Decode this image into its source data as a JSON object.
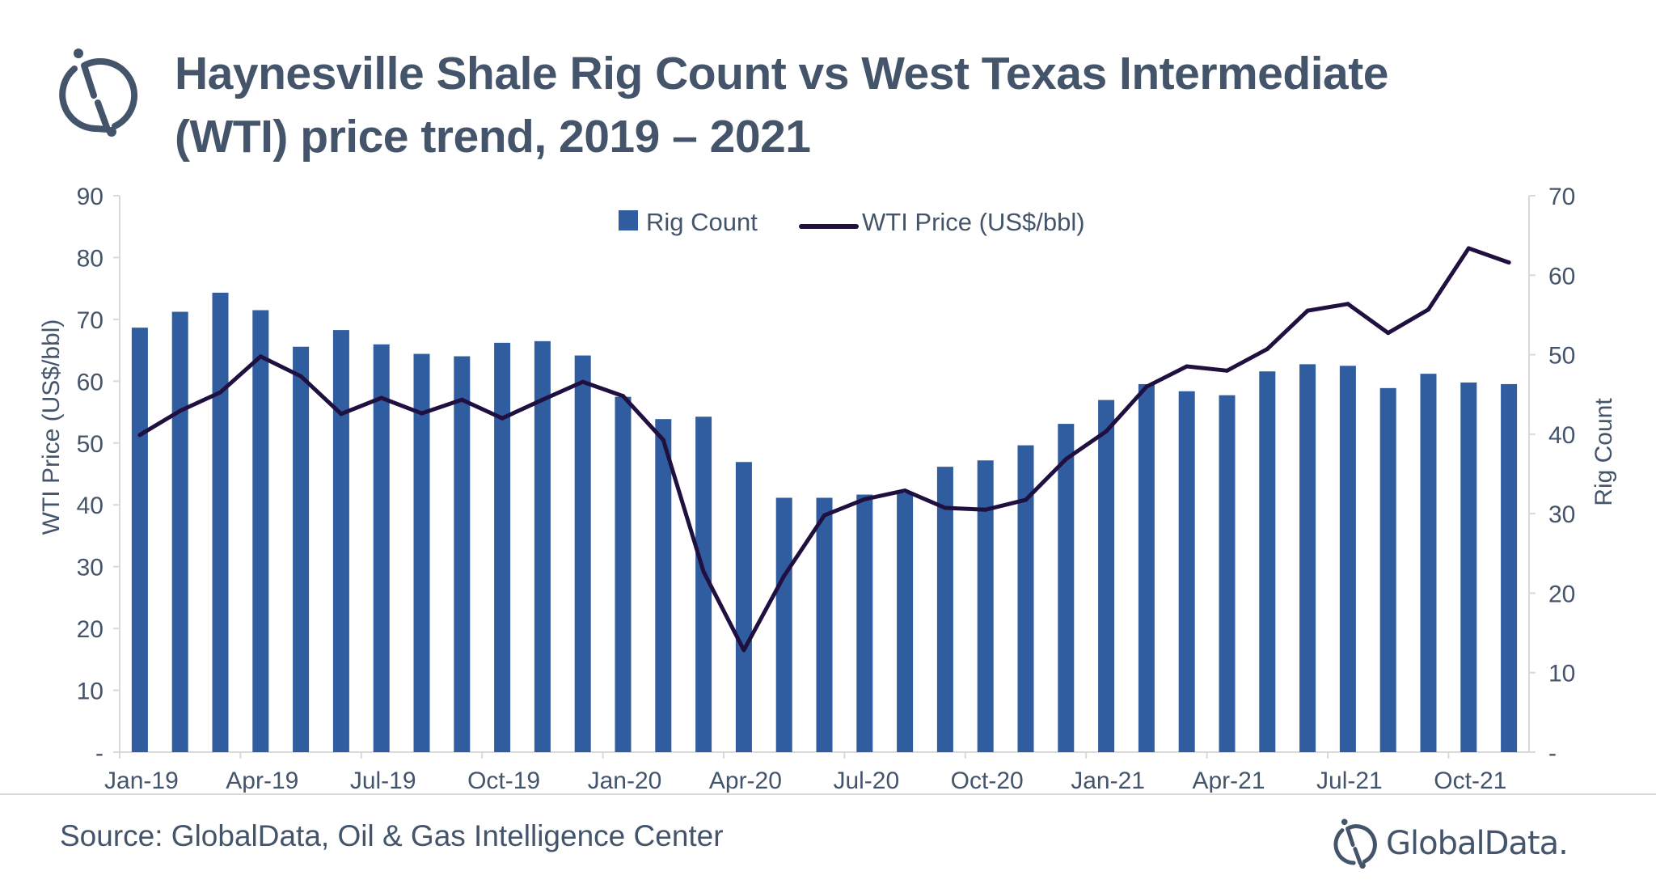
{
  "header": {
    "title_line1": "Haynesville Shale Rig Count vs West Texas Intermediate",
    "title_line2": "(WTI) price trend, 2019 – 2021",
    "logo_icon": "globaldata-logo-icon"
  },
  "footer": {
    "source": "Source: GlobalData, Oil & Gas Intelligence Center",
    "brand": "GlobalData."
  },
  "colors": {
    "bar": "#2f5d9f",
    "line": "#1f1040",
    "text": "#44546a",
    "axis": "#d9d9d9"
  },
  "chart_data": {
    "type": "bar+line",
    "title": "Haynesville Shale Rig Count vs West Texas Intermediate (WTI) price trend, 2019 – 2021",
    "categories": [
      "Jan-19",
      "Feb-19",
      "Mar-19",
      "Apr-19",
      "May-19",
      "Jun-19",
      "Jul-19",
      "Aug-19",
      "Sep-19",
      "Oct-19",
      "Nov-19",
      "Dec-19",
      "Jan-20",
      "Feb-20",
      "Mar-20",
      "Apr-20",
      "May-20",
      "Jun-20",
      "Jul-20",
      "Aug-20",
      "Sep-20",
      "Oct-20",
      "Nov-20",
      "Dec-20",
      "Jan-21",
      "Feb-21",
      "Mar-21",
      "Apr-21",
      "May-21",
      "Jun-21",
      "Jul-21",
      "Aug-21",
      "Sep-21",
      "Oct-21",
      "Nov-21"
    ],
    "x_tick_labels": [
      "Jan-19",
      "Apr-19",
      "Jul-19",
      "Oct-19",
      "Jan-20",
      "Apr-20",
      "Jul-20",
      "Oct-20",
      "Jan-21",
      "Apr-21",
      "Jul-21",
      "Oct-21"
    ],
    "series": [
      {
        "name": "Rig Count",
        "type": "bar",
        "axis": "right",
        "values": [
          53.4,
          55.4,
          57.8,
          55.6,
          51.0,
          53.1,
          51.3,
          50.1,
          49.8,
          51.5,
          51.7,
          49.9,
          44.7,
          41.9,
          42.2,
          36.5,
          32.0,
          32.0,
          32.4,
          32.6,
          35.9,
          36.7,
          38.6,
          41.3,
          44.3,
          46.3,
          45.4,
          44.9,
          47.9,
          48.8,
          48.6,
          45.8,
          47.6,
          46.5,
          46.3
        ]
      },
      {
        "name": "WTI Price (US$/bbl)",
        "type": "line",
        "axis": "left",
        "values": [
          51.3,
          55.2,
          58.2,
          64.0,
          60.8,
          54.7,
          57.3,
          54.8,
          57.0,
          54.0,
          57.0,
          59.9,
          57.6,
          50.5,
          29.2,
          16.5,
          28.5,
          38.3,
          40.9,
          42.3,
          39.5,
          39.2,
          40.8,
          47.4,
          51.9,
          59.1,
          62.4,
          61.7,
          65.2,
          71.4,
          72.5,
          67.8,
          71.6,
          81.5,
          79.2
        ]
      }
    ],
    "ylabel_left": "WTI Price (US$/bbl)",
    "ylabel_right": "Rig Count",
    "ylim_left": [
      0,
      90
    ],
    "ylim_right": [
      0,
      70
    ],
    "yticks_left": [
      "-",
      "10",
      "20",
      "30",
      "40",
      "50",
      "60",
      "70",
      "80",
      "90"
    ],
    "yticks_right": [
      "-",
      "10",
      "20",
      "30",
      "40",
      "50",
      "60",
      "70"
    ],
    "legend": [
      "Rig Count",
      "WTI Price (US$/bbl)"
    ],
    "legend_position": "top-center",
    "grid": false
  }
}
